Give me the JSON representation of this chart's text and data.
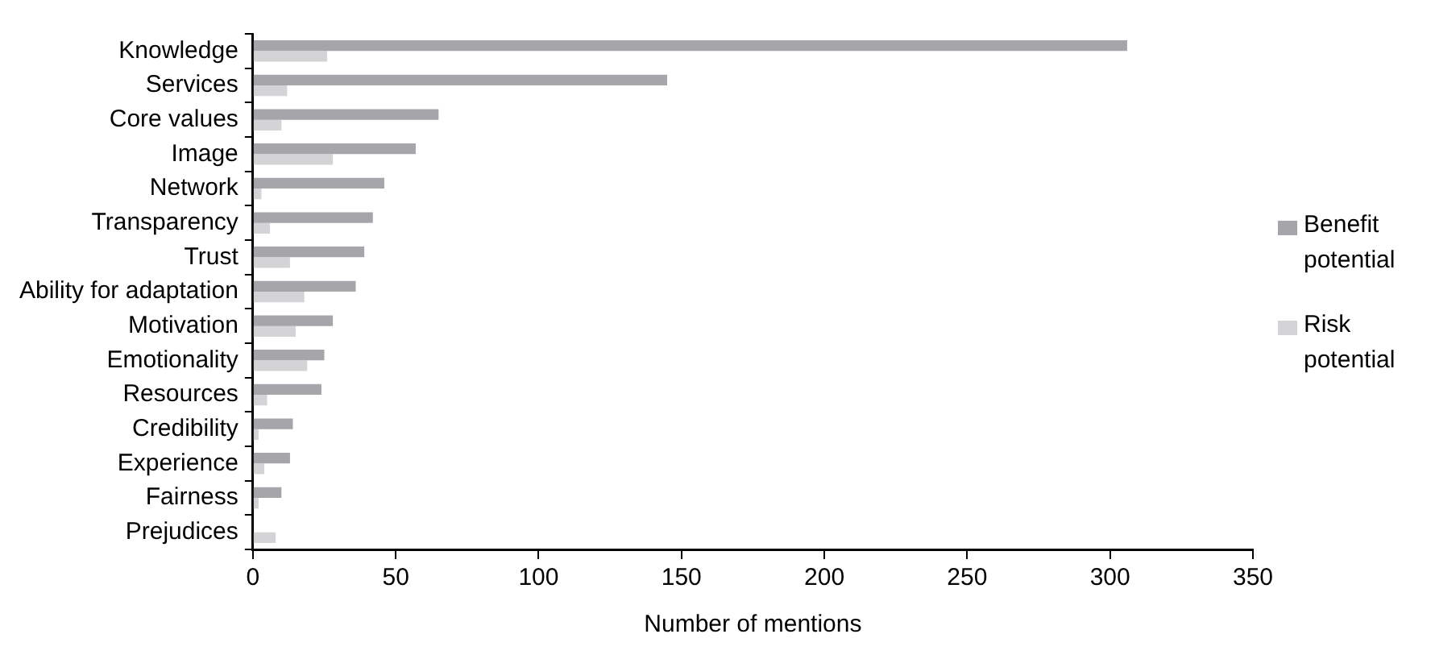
{
  "chart_data": {
    "type": "bar",
    "orientation": "horizontal",
    "xlabel": "Number of mentions",
    "categories": [
      "Knowledge",
      "Services",
      "Core values",
      "Image",
      "Network",
      "Transparency",
      "Trust",
      "Ability for adaptation",
      "Motivation",
      "Emotionality",
      "Resources",
      "Credibility",
      "Experience",
      "Fairness",
      "Prejudices"
    ],
    "series": [
      {
        "name": "Benefit potential",
        "color": "#a6a6aa",
        "values": [
          306,
          145,
          65,
          57,
          46,
          42,
          39,
          36,
          28,
          25,
          24,
          14,
          13,
          10,
          0
        ]
      },
      {
        "name": "Risk potential",
        "color": "#d4d4d6",
        "values": [
          26,
          12,
          10,
          28,
          3,
          6,
          13,
          18,
          15,
          19,
          5,
          2,
          4,
          2,
          8
        ]
      }
    ],
    "xlim": [
      0,
      350
    ],
    "xticks": [
      0,
      50,
      100,
      150,
      200,
      250,
      300,
      350
    ],
    "grid": false,
    "legend": "right"
  }
}
